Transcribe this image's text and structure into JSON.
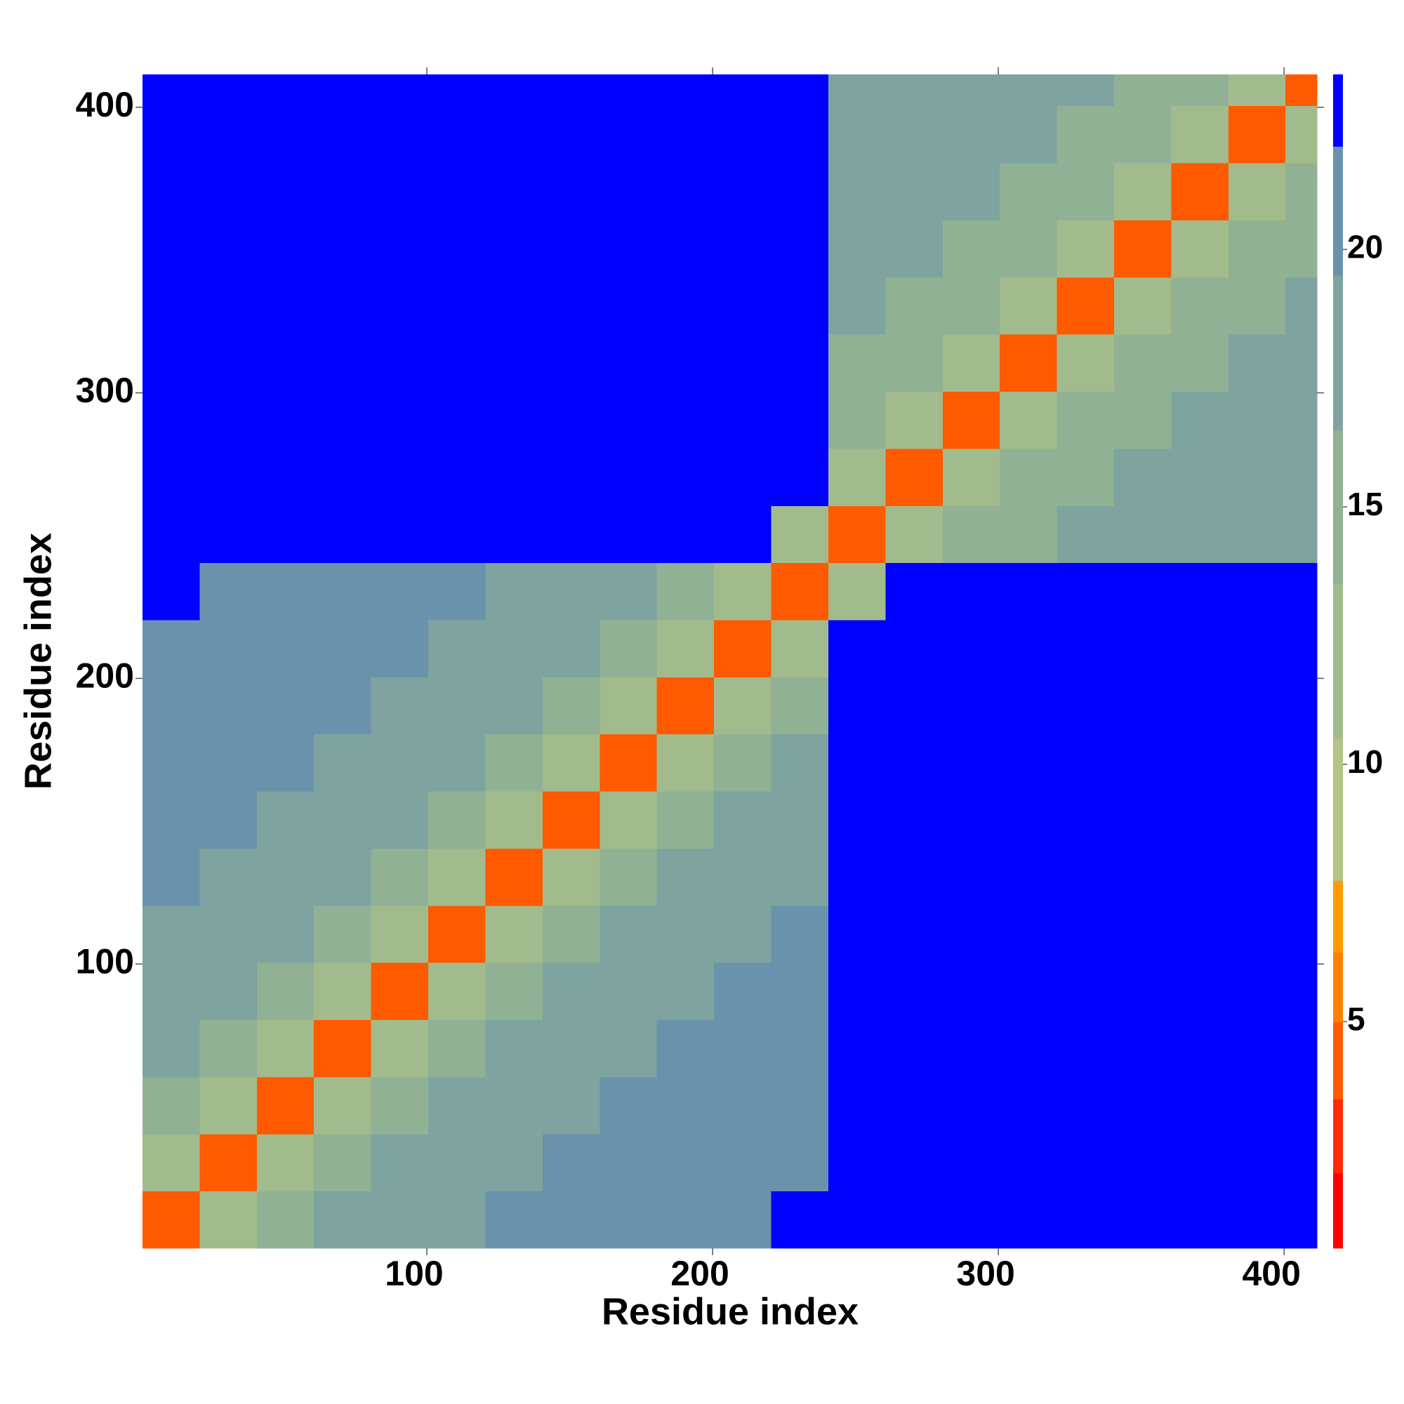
{
  "chart_data": {
    "type": "heatmap",
    "xlabel": "Residue index",
    "ylabel": "Residue index",
    "x_bins": [
      0.5,
      20.5,
      40.5,
      60.5,
      80.5,
      100.5,
      120.5,
      140.5,
      160.5,
      180.5,
      200.5,
      220.5,
      240.5,
      260.5,
      280.5,
      300.5,
      320.5,
      340.5,
      360.5,
      380.5,
      400.5,
      411.5
    ],
    "y_bins": [
      0.5,
      20.5,
      40.5,
      60.5,
      80.5,
      100.5,
      120.5,
      140.5,
      160.5,
      180.5,
      200.5,
      220.5,
      240.5,
      260.5,
      280.5,
      300.5,
      320.5,
      340.5,
      360.5,
      380.5,
      400.5,
      411.5
    ],
    "z": [
      [
        4,
        12,
        15,
        17,
        18,
        19,
        20,
        20,
        21,
        21,
        21.5,
        23,
        23,
        23,
        23,
        23,
        23,
        23,
        23,
        23,
        23
      ],
      [
        12,
        4,
        12,
        15,
        17,
        18,
        19,
        20,
        20,
        21,
        21,
        21.5,
        23,
        23,
        23,
        23,
        23,
        23,
        23,
        23,
        23
      ],
      [
        15,
        12,
        4,
        12,
        15,
        17,
        18,
        19,
        20,
        20,
        21,
        21,
        23,
        23,
        23,
        23,
        23,
        23,
        23,
        23,
        23
      ],
      [
        17,
        15,
        12,
        4,
        12,
        15,
        17,
        18,
        19,
        20,
        20,
        21,
        23,
        23,
        23,
        23,
        23,
        23,
        23,
        23,
        23
      ],
      [
        18,
        17,
        15,
        12,
        4,
        12,
        15,
        17,
        18,
        19,
        20,
        20,
        23,
        23,
        23,
        23,
        23,
        23,
        23,
        23,
        23
      ],
      [
        19,
        18,
        17,
        15,
        12,
        4,
        12,
        15,
        17,
        18,
        19,
        20,
        23,
        23,
        23,
        23,
        23,
        23,
        23,
        23,
        23
      ],
      [
        20,
        19,
        18,
        17,
        15,
        12,
        4,
        12,
        15,
        17,
        18,
        19,
        23,
        23,
        23,
        23,
        23,
        23,
        23,
        23,
        23
      ],
      [
        20,
        20,
        19,
        18,
        17,
        15,
        12,
        4,
        12,
        15,
        17,
        18,
        23,
        23,
        23,
        23,
        23,
        23,
        23,
        23,
        23
      ],
      [
        21,
        20,
        20,
        19,
        18,
        17,
        15,
        12,
        4,
        12,
        15,
        17,
        23,
        23,
        23,
        23,
        23,
        23,
        23,
        23,
        23
      ],
      [
        21,
        21,
        20,
        20,
        19,
        18,
        17,
        15,
        12,
        4,
        12,
        15,
        23,
        23,
        23,
        23,
        23,
        23,
        23,
        23,
        23
      ],
      [
        21.5,
        21,
        21,
        20,
        20,
        19,
        18,
        17,
        15,
        12,
        4,
        12,
        23,
        23,
        23,
        23,
        23,
        23,
        23,
        23,
        23
      ],
      [
        23,
        21.5,
        21,
        21,
        20,
        20,
        19,
        18,
        17,
        15,
        12,
        4,
        12,
        23,
        23,
        23,
        23,
        23,
        23,
        23,
        23
      ],
      [
        23,
        23,
        23,
        23,
        23,
        23,
        23,
        23,
        23,
        23,
        23,
        12,
        4,
        12,
        14,
        16,
        17,
        18,
        18,
        19,
        19
      ],
      [
        23,
        23,
        23,
        23,
        23,
        23,
        23,
        23,
        23,
        23,
        23,
        23,
        12,
        4,
        12,
        14,
        16,
        17,
        18,
        18,
        19
      ],
      [
        23,
        23,
        23,
        23,
        23,
        23,
        23,
        23,
        23,
        23,
        23,
        23,
        14,
        12,
        4,
        12,
        14,
        16,
        17,
        18,
        18
      ],
      [
        23,
        23,
        23,
        23,
        23,
        23,
        23,
        23,
        23,
        23,
        23,
        23,
        16,
        14,
        12,
        4,
        12,
        14,
        16,
        17,
        18
      ],
      [
        23,
        23,
        23,
        23,
        23,
        23,
        23,
        23,
        23,
        23,
        23,
        23,
        17,
        16,
        14,
        12,
        4,
        12,
        14,
        16,
        17
      ],
      [
        23,
        23,
        23,
        23,
        23,
        23,
        23,
        23,
        23,
        23,
        23,
        23,
        18,
        17,
        16,
        14,
        12,
        4,
        12,
        14,
        16
      ],
      [
        23,
        23,
        23,
        23,
        23,
        23,
        23,
        23,
        23,
        23,
        23,
        23,
        18,
        18,
        17,
        16,
        14,
        12,
        4,
        12,
        14
      ],
      [
        23,
        23,
        23,
        23,
        23,
        23,
        23,
        23,
        23,
        23,
        23,
        23,
        19,
        18,
        18,
        17,
        16,
        14,
        12,
        4,
        12
      ],
      [
        23,
        23,
        23,
        23,
        23,
        23,
        23,
        23,
        23,
        23,
        23,
        23,
        19,
        19,
        18,
        18,
        17,
        16,
        14,
        12,
        4
      ]
    ],
    "xlim": [
      0.5,
      411.5
    ],
    "ylim": [
      0.5,
      411.5
    ],
    "xticks": [
      100,
      200,
      300,
      400
    ],
    "yticks": [
      100,
      200,
      300,
      400
    ],
    "colorbar": {
      "levels": [
        0.6,
        2.06,
        3.5,
        5,
        6.35,
        7.74,
        10.5,
        13.5,
        16.5,
        19.5,
        22,
        23.4
      ],
      "colors": [
        "#ff0000",
        "#ff2a00",
        "#ff5a00",
        "#ff8000",
        "#ff9a00",
        "#b3c484",
        "#a2bb8c",
        "#91b195",
        "#7fa39f",
        "#6a92ad",
        "#0000ff"
      ],
      "ticks": [
        5,
        10,
        15,
        20
      ]
    }
  }
}
